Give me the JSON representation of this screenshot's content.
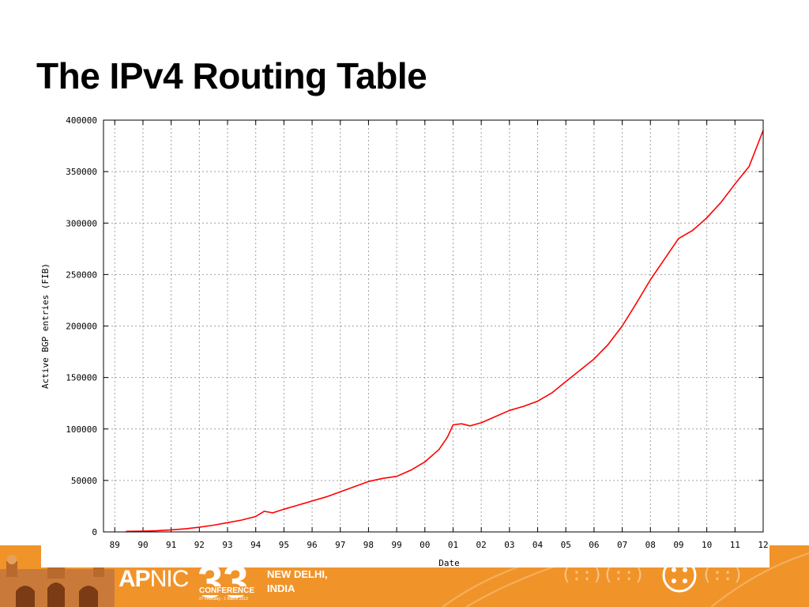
{
  "slide": {
    "title": "The IPv4 Routing Table"
  },
  "footer": {
    "logo_ap": "AP",
    "logo_nic": "NIC",
    "conference_number": "33",
    "conference_word": "CONFERENCE",
    "conference_dates": "27 February - 1 March 2012",
    "city_line1": "NEW DELHI,",
    "city_line2": "INDIA",
    "brand_color": "#f0942a"
  },
  "chart_data": {
    "type": "line",
    "title": "",
    "xlabel": "Date",
    "ylabel": "Active BGP entries (FIB)",
    "x_tick_labels": [
      "89",
      "90",
      "91",
      "92",
      "93",
      "94",
      "95",
      "96",
      "97",
      "98",
      "99",
      "00",
      "01",
      "02",
      "03",
      "04",
      "05",
      "06",
      "07",
      "08",
      "09",
      "10",
      "11",
      "12"
    ],
    "x_tick_years": [
      1989,
      1990,
      1991,
      1992,
      1993,
      1994,
      1995,
      1996,
      1997,
      1998,
      1999,
      2000,
      2001,
      2002,
      2003,
      2004,
      2005,
      2006,
      2007,
      2008,
      2009,
      2010,
      2011,
      2012
    ],
    "y_ticks": [
      0,
      50000,
      100000,
      150000,
      200000,
      250000,
      300000,
      350000,
      400000
    ],
    "xlim": [
      1988.6,
      2012
    ],
    "ylim": [
      0,
      400000
    ],
    "grid": true,
    "line_color": "#ff0000",
    "series": [
      {
        "x": [
          1989.4,
          1990.0,
          1990.5,
          1991.0,
          1991.5,
          1992.0,
          1992.5,
          1993.0,
          1993.5,
          1994.0,
          1994.3,
          1994.6,
          1995.0,
          1995.5,
          1996.0,
          1996.5,
          1997.0,
          1997.5,
          1998.0,
          1998.5,
          1999.0,
          1999.5,
          2000.0,
          2000.5,
          2000.8,
          2001.0,
          2001.3,
          2001.6,
          2002.0,
          2002.5,
          2003.0,
          2003.5,
          2004.0,
          2004.5,
          2005.0,
          2005.5,
          2006.0,
          2006.5,
          2007.0,
          2007.5,
          2008.0,
          2008.5,
          2009.0,
          2009.5,
          2010.0,
          2010.5,
          2011.0,
          2011.5,
          2012.0
        ],
        "y": [
          500,
          800,
          1200,
          2000,
          3000,
          4500,
          6500,
          9000,
          11500,
          15000,
          20000,
          18500,
          22000,
          26000,
          30000,
          34000,
          39000,
          44000,
          49000,
          52000,
          54000,
          60000,
          68000,
          80000,
          92000,
          104000,
          105000,
          103000,
          106000,
          112000,
          118000,
          122000,
          127000,
          135000,
          146000,
          157000,
          168000,
          182000,
          200000,
          222000,
          245000,
          265000,
          285000,
          293000,
          305000,
          320000,
          338000,
          355000,
          390000
        ]
      }
    ]
  }
}
